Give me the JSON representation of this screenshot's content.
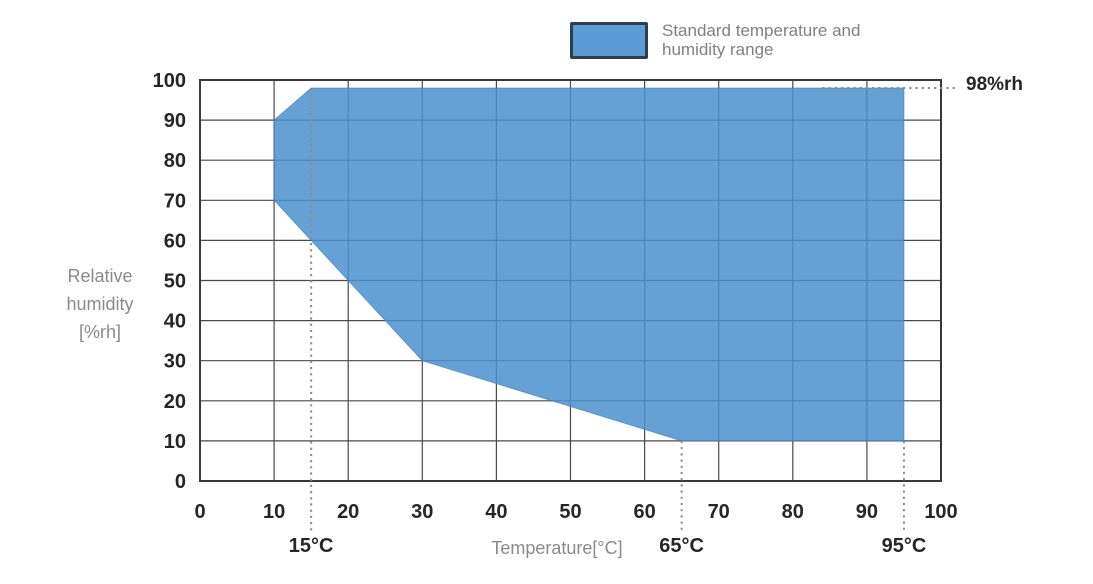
{
  "chart_data": {
    "type": "area",
    "title": "",
    "xlabel": "Temperature[°C]",
    "ylabel": "Relative humidity [%rh]",
    "ylabel_lines": [
      "Relative",
      "humidity",
      "[%rh]"
    ],
    "xlim": [
      0,
      100
    ],
    "ylim": [
      0,
      100
    ],
    "x_ticks": [
      0,
      10,
      20,
      30,
      40,
      50,
      60,
      70,
      80,
      90,
      100
    ],
    "y_ticks": [
      0,
      10,
      20,
      30,
      40,
      50,
      60,
      70,
      80,
      90,
      100
    ],
    "grid": true,
    "legend_position": "top",
    "series": [
      {
        "name": "Standard temperature and humidity range",
        "shape": "polygon",
        "vertices_temp_rh": [
          [
            10,
            70
          ],
          [
            10,
            90
          ],
          [
            15,
            98
          ],
          [
            95,
            98
          ],
          [
            95,
            10
          ],
          [
            65,
            10
          ],
          [
            30,
            30
          ]
        ]
      }
    ],
    "annotations": {
      "temp_markers": [
        {
          "label": "15°C",
          "temp": 15,
          "line_top_rh": 98
        },
        {
          "label": "65°C",
          "temp": 65,
          "line_top_rh": 10
        },
        {
          "label": "95°C",
          "temp": 95,
          "line_top_rh": 10
        }
      ],
      "humidity_marker": {
        "label": "98%rh",
        "rh": 98,
        "line_start_temp": 84
      }
    }
  },
  "legend": {
    "line1": "Standard temperature and",
    "line2": "humidity range"
  },
  "colors": {
    "region_fill": "#4A90CE",
    "region_edge": "#3D7DBB",
    "grid": "#4A4A4A",
    "plot_border": "#383838",
    "dotted_line": "#8C8C8C",
    "tick_text": "#262626",
    "muted_text": "#8A8A8A",
    "legend_border": "#2F3E4E",
    "legend_fill": "#5B9BD5"
  }
}
